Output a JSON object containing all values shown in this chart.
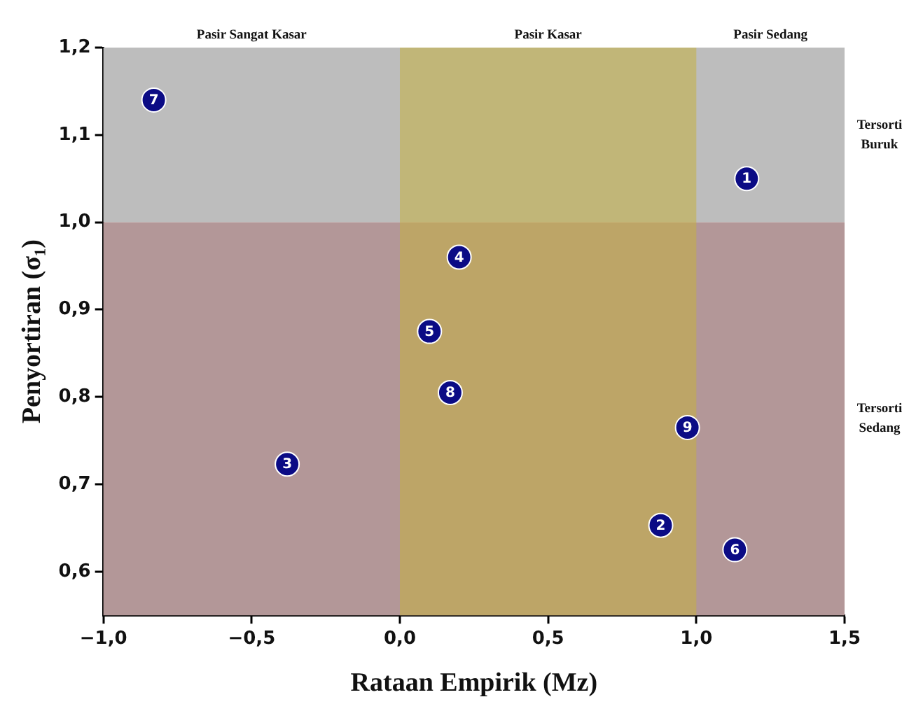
{
  "chart_data": {
    "type": "scatter",
    "xlabel": "Rataan Empirik (Mz)",
    "ylabel": "Penyortiran (σ₁)",
    "x": [
      1.17,
      0.88,
      -0.38,
      0.2,
      0.1,
      1.13,
      -0.83,
      0.17,
      0.97
    ],
    "series": [
      {
        "color": "#0b0b85",
        "values": [
          1.05,
          0.653,
          0.723,
          0.96,
          0.875,
          0.625,
          1.14,
          0.805,
          0.765
        ]
      }
    ],
    "marker": "circle",
    "xlim": [
      -1,
      1.5
    ],
    "xticks": [
      {
        "value": -1,
        "label": "−1,0"
      },
      {
        "value": -0.5,
        "label": "−0,5"
      },
      {
        "value": 0,
        "label": "0,0"
      },
      {
        "value": 0.5,
        "label": "0,5"
      },
      {
        "value": 1,
        "label": "1,0"
      },
      {
        "value": 1.5,
        "label": "1,5"
      }
    ],
    "ylim": [
      0.55,
      1.2
    ],
    "yticks": [
      {
        "value": 0.6,
        "label": "0,6"
      },
      {
        "value": 0.7,
        "label": "0,7"
      },
      {
        "value": 0.8,
        "label": "0,8"
      },
      {
        "value": 0.9,
        "label": "0,9"
      },
      {
        "value": 1,
        "label": "1,0"
      },
      {
        "value": 1.1,
        "label": "1,1"
      },
      {
        "value": 1.2,
        "label": "1,2"
      }
    ],
    "bands": [
      {
        "axis": "y",
        "from": 1.0,
        "to": 1.2,
        "label": "Tersorti Buruk",
        "color": "#bdbdbd"
      },
      {
        "axis": "y",
        "from": 0.55,
        "to": 1.0,
        "label": "Tersorti Sedang",
        "color": "#b39798"
      },
      {
        "axis": "x",
        "from": 0,
        "to": 1,
        "label": "Pasir Kasar",
        "color": "#c4b040"
      }
    ],
    "annotations": [
      {
        "text": "Pasir Sangat Kasar",
        "x": -0.5,
        "y": 1.2
      },
      {
        "text": "Pasir Sedang",
        "x": 1.25,
        "y": 1.2
      },
      {
        "text": "1",
        "x": 1.17,
        "y": 1.05
      },
      {
        "text": "2",
        "x": 0.88,
        "y": 0.653
      },
      {
        "text": "3",
        "x": -0.38,
        "y": 0.723
      },
      {
        "text": "4",
        "x": 0.2,
        "y": 0.96
      },
      {
        "text": "5",
        "x": 0.1,
        "y": 0.875
      },
      {
        "text": "6",
        "x": 1.13,
        "y": 0.625
      },
      {
        "text": "7",
        "x": -0.83,
        "y": 1.14
      },
      {
        "text": "8",
        "x": 0.17,
        "y": 0.805
      },
      {
        "text": "9",
        "x": 0.97,
        "y": 0.765
      }
    ],
    "grid": false,
    "legend": false
  }
}
